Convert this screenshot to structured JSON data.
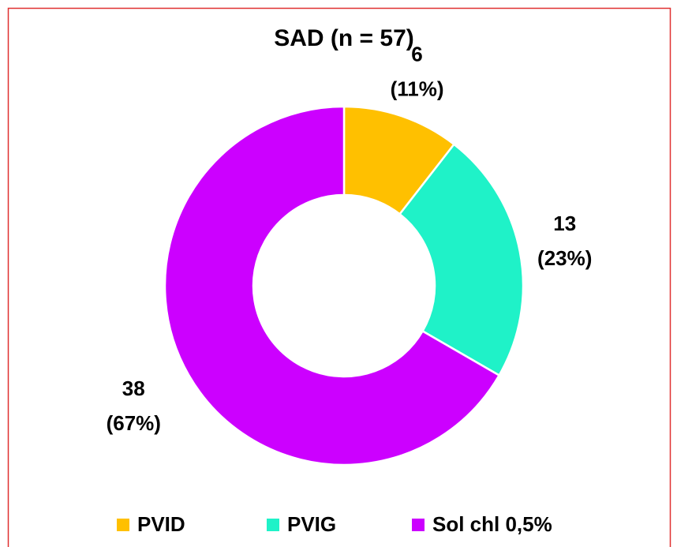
{
  "chart_data": {
    "type": "donut",
    "title": "SAD (n = 57)",
    "categories": [
      "PVID",
      "PVIG",
      "Sol chl 0,5%"
    ],
    "values": [
      6,
      13,
      38
    ],
    "percents": [
      11,
      23,
      67
    ],
    "percent_labels": [
      "(11%)",
      "(23%)",
      "(67%)"
    ],
    "colors": [
      "#ffc000",
      "#1ff2c8",
      "#cc00ff"
    ],
    "legend": "bottom"
  }
}
